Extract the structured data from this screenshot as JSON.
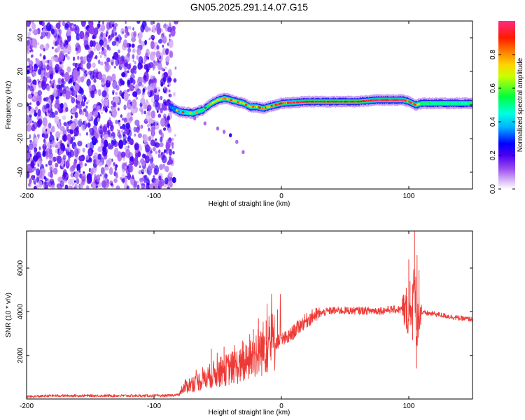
{
  "title": "GN05.2025.291.14.07.G15",
  "chart_data": [
    {
      "type": "heatmap",
      "title": "GN05.2025.291.14.07.G15",
      "xlabel": "Height of straight line (km)",
      "ylabel": "Frequency (Hz)",
      "xlim": [
        -200,
        150
      ],
      "ylim": [
        -50,
        50
      ],
      "xticks": [
        -200,
        -100,
        0,
        100
      ],
      "yticks": [
        -40,
        -20,
        0,
        20,
        40
      ],
      "colorbar": {
        "label": "Normalized spectral amplitude",
        "range": [
          0,
          1
        ],
        "ticks": [
          0.0,
          0.2,
          0.4,
          0.6,
          0.8
        ],
        "tick_labels": [
          "0.0",
          "0.2",
          "0.4",
          "0.6",
          "0.8"
        ],
        "colormap": [
          "#ffffff",
          "#e4ccf6",
          "#9b59f0",
          "#6a00e8",
          "#0000ff",
          "#00e5ff",
          "#00ff00",
          "#ffff00",
          "#ff7f00",
          "#ff0000",
          "#ff1493"
        ]
      },
      "noise_region": {
        "x": [
          -200,
          -85
        ],
        "y": [
          -50,
          50
        ],
        "amplitude": 0.15
      },
      "signal_ridge": {
        "x": [
          -88,
          -80,
          -70,
          -62,
          -55,
          -50,
          -45,
          -40,
          -35,
          -30,
          -25,
          -20,
          -15,
          -10,
          -5,
          0,
          20,
          40,
          60,
          75,
          90,
          95,
          100,
          105,
          110,
          130,
          150
        ],
        "frequency": [
          -1,
          -4,
          -5,
          -3,
          1,
          3,
          4,
          3,
          2,
          1,
          -1,
          -1,
          -2,
          -1,
          0,
          1,
          2,
          2,
          2,
          3,
          3,
          3,
          2,
          0,
          1,
          1,
          1
        ],
        "amplitude": [
          0.3,
          0.4,
          0.5,
          0.5,
          0.6,
          0.7,
          0.7,
          0.7,
          0.7,
          0.7,
          0.7,
          0.75,
          0.8,
          0.8,
          0.85,
          0.9,
          0.95,
          0.97,
          0.95,
          0.95,
          0.95,
          0.95,
          0.9,
          0.85,
          0.5,
          0.5,
          0.5
        ]
      },
      "faint_branch": {
        "x": [
          -68,
          -60,
          -50,
          -45,
          -40,
          -35,
          -30
        ],
        "frequency": [
          -8,
          -11,
          -14,
          -16,
          -18,
          -22,
          -28
        ]
      }
    },
    {
      "type": "line",
      "xlabel": "Height of straight line (km)",
      "ylabel": "SNR (10 * v/v)",
      "xlim": [
        -200,
        150
      ],
      "ylim": [
        0,
        7700
      ],
      "xticks": [
        -200,
        -100,
        0,
        100
      ],
      "yticks": [
        2000,
        4000,
        6000
      ],
      "color": "#ee3a36",
      "series": [
        {
          "name": "SNR",
          "x": [
            -200,
            -180,
            -160,
            -140,
            -120,
            -100,
            -90,
            -80,
            -75,
            -70,
            -65,
            -60,
            -55,
            -50,
            -45,
            -40,
            -35,
            -30,
            -25,
            -20,
            -15,
            -10,
            -5,
            0,
            5,
            10,
            15,
            20,
            25,
            30,
            35,
            40,
            50,
            60,
            70,
            80,
            85,
            90,
            95,
            98,
            100,
            102,
            104,
            105,
            106,
            107,
            108,
            110,
            120,
            130,
            140,
            150
          ],
          "y": [
            100,
            150,
            150,
            150,
            150,
            150,
            150,
            200,
            600,
            700,
            800,
            900,
            1100,
            1200,
            1300,
            1400,
            1500,
            1500,
            1800,
            2100,
            2300,
            2600,
            2600,
            2700,
            2800,
            3100,
            3400,
            3600,
            3800,
            3900,
            4000,
            4050,
            4050,
            4050,
            4050,
            4050,
            4100,
            4100,
            4100,
            4000,
            3800,
            4200,
            5200,
            4800,
            2700,
            3600,
            4000,
            3950,
            3900,
            3800,
            3700,
            3650
          ]
        }
      ],
      "spikes": {
        "x": [
          -55,
          -45,
          -30,
          -22,
          -18,
          -12,
          -8,
          -3,
          98,
          100,
          101,
          103,
          104.5,
          105.5,
          106,
          106.5,
          107.5,
          108
        ],
        "y": [
          2300,
          2400,
          2600,
          3200,
          3700,
          3600,
          3900,
          4100,
          5100,
          6400,
          5400,
          2700,
          7800,
          5600,
          1400,
          6600,
          2800,
          5900
        ]
      }
    }
  ]
}
